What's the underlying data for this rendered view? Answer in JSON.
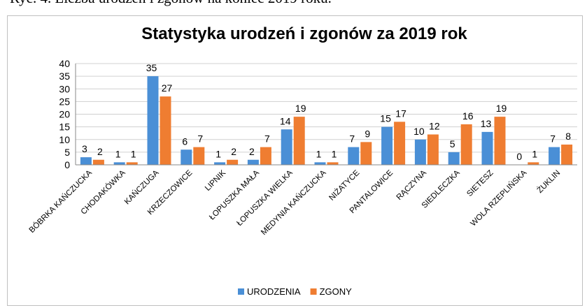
{
  "caption": "Ryc. 4. Liczba urodzeń i zgonów na koniec 2019 roku.",
  "chart_data": {
    "type": "bar",
    "title": "Statystyka urodzeń i zgonów za 2019 rok",
    "categories": [
      "BÓBRKA KAŃCZUCKA",
      "CHODAKÓWKA",
      "KAŃCZUGA",
      "KRZECZOWICE",
      "LIPNIK",
      "ŁOPUSZKA MAŁA",
      "ŁOPUSZKA WIELKA",
      "MEDYNIA KAŃCZUCKA",
      "NIŻATYCE",
      "PANTALOWICE",
      "RĄCZYNA",
      "SIEDLECZKA",
      "SIETESZ",
      "WOLA RZEPLIŃSKA",
      "ŻUKLIN"
    ],
    "series": [
      {
        "name": "URODZENIA",
        "color": "#4a8fd6",
        "values": [
          3,
          1,
          35,
          6,
          1,
          2,
          14,
          1,
          7,
          15,
          10,
          5,
          13,
          0,
          7
        ]
      },
      {
        "name": "ZGONY",
        "color": "#ef7d31",
        "values": [
          2,
          1,
          27,
          7,
          2,
          7,
          19,
          1,
          9,
          17,
          12,
          16,
          19,
          1,
          8
        ]
      }
    ],
    "ylim": [
      0,
      40
    ],
    "yticks": [
      0,
      5,
      10,
      15,
      20,
      25,
      30,
      35,
      40
    ],
    "grid": true,
    "legend": "bottom"
  }
}
